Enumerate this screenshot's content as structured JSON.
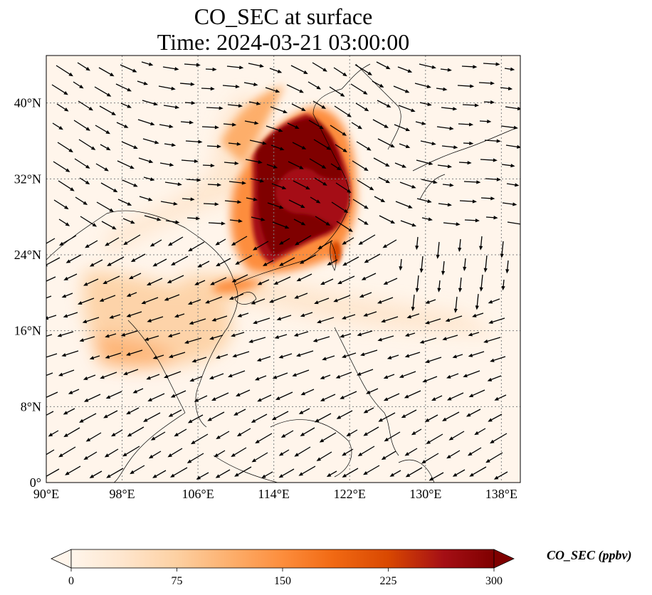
{
  "title": {
    "line1": "CO_SEC at surface",
    "line2": "Time: 2024-03-21 03:00:00"
  },
  "map": {
    "variable": "CO_SEC",
    "level": "surface",
    "lon_range": [
      90,
      140
    ],
    "lat_range": [
      0,
      45
    ],
    "lon_ticks": [
      "90°E",
      "98°E",
      "106°E",
      "114°E",
      "122°E",
      "130°E",
      "138°E"
    ],
    "lat_ticks": [
      "0°",
      "8°N",
      "16°N",
      "24°N",
      "32°N",
      "40°N"
    ],
    "gridlines": true,
    "wind_vectors": true
  },
  "colorbar": {
    "label": "CO_SEC (ppbv)",
    "ticks": [
      "0",
      "75",
      "150",
      "225",
      "300"
    ],
    "min": 0,
    "max": 300,
    "extend": "both",
    "colormap": [
      "#fff5eb",
      "#fee6ce",
      "#fdd0a2",
      "#fdae6b",
      "#fd8d3c",
      "#f16913",
      "#d94801",
      "#a50f15",
      "#7f0000"
    ]
  }
}
